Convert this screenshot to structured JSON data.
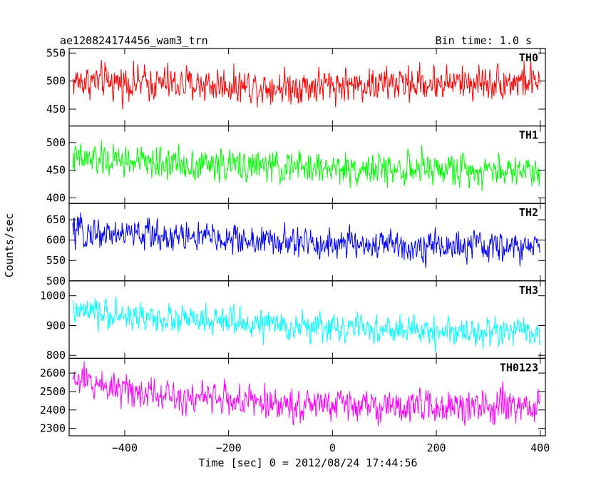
{
  "header": {
    "title": "ae120824174456_wam3_trn",
    "bin_time": "Bin time: 1.0 s"
  },
  "chart_data": {
    "type": "line",
    "title": "ae120824174456_wam3_trn",
    "xlabel": "Time [sec] 0 = 2012/08/24 17:44:56",
    "ylabel": "Counts/sec",
    "xlim": [
      -507,
      410
    ],
    "x_ticks": [
      -400,
      -200,
      0,
      200,
      400
    ],
    "x_range_data": [
      -500,
      400
    ],
    "bin_time_s": 1.0,
    "panels": [
      {
        "name": "TH0",
        "color": "#ff0000",
        "ylim": [
          420,
          558
        ],
        "y_ticks": [
          450,
          500,
          550
        ],
        "trend": [
          [
            -500,
            500
          ],
          [
            -300,
            495
          ],
          [
            -100,
            490
          ],
          [
            100,
            495
          ],
          [
            400,
            500
          ]
        ],
        "noise_halfwidth": 45
      },
      {
        "name": "TH1",
        "color": "#00ff00",
        "ylim": [
          390,
          530
        ],
        "y_ticks": [
          400,
          450,
          500
        ],
        "trend": [
          [
            -500,
            470
          ],
          [
            -300,
            462
          ],
          [
            -100,
            455
          ],
          [
            100,
            452
          ],
          [
            400,
            450
          ]
        ],
        "noise_halfwidth": 42
      },
      {
        "name": "TH2",
        "color": "#0000ff",
        "ylim": [
          500,
          690
        ],
        "y_ticks": [
          500,
          550,
          600,
          650
        ],
        "trend": [
          [
            -500,
            620
          ],
          [
            -300,
            610
          ],
          [
            -100,
            595
          ],
          [
            100,
            588
          ],
          [
            400,
            580
          ]
        ],
        "noise_halfwidth": 55
      },
      {
        "name": "TH3",
        "color": "#00ffff",
        "ylim": [
          790,
          1050
        ],
        "y_ticks": [
          800,
          900,
          1000
        ],
        "trend": [
          [
            -500,
            945
          ],
          [
            -300,
            920
          ],
          [
            -100,
            900
          ],
          [
            100,
            885
          ],
          [
            400,
            875
          ]
        ],
        "noise_halfwidth": 70
      },
      {
        "name": "TH0123",
        "color": "#ff00ff",
        "ylim": [
          2260,
          2680
        ],
        "y_ticks": [
          2300,
          2400,
          2500,
          2600
        ],
        "trend": [
          [
            -500,
            2560
          ],
          [
            -300,
            2480
          ],
          [
            -100,
            2430
          ],
          [
            100,
            2420
          ],
          [
            400,
            2410
          ]
        ],
        "noise_halfwidth": 130
      }
    ]
  }
}
